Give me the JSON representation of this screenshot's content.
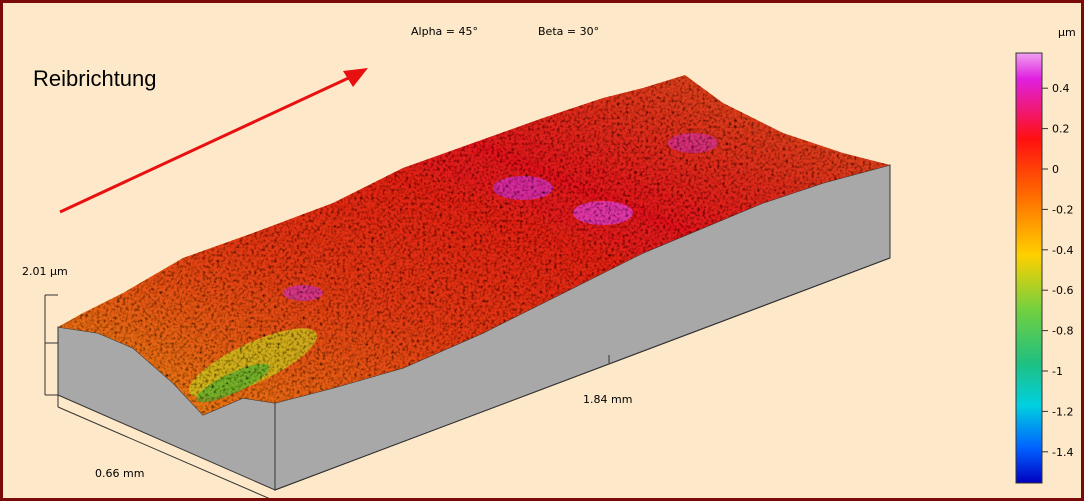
{
  "header": {
    "alpha": "Alpha = 45°",
    "beta": "Beta = 30°"
  },
  "labels": {
    "direction": "Reibrichtung",
    "height": "2.01 µm",
    "length": "1.84 mm",
    "width": "0.66 mm"
  },
  "colorbar": {
    "unit": "µm",
    "ticks": [
      0.4,
      0.2,
      0,
      -0.2,
      -0.4,
      -0.6,
      -0.8,
      -1,
      -1.2,
      -1.4
    ]
  }
}
